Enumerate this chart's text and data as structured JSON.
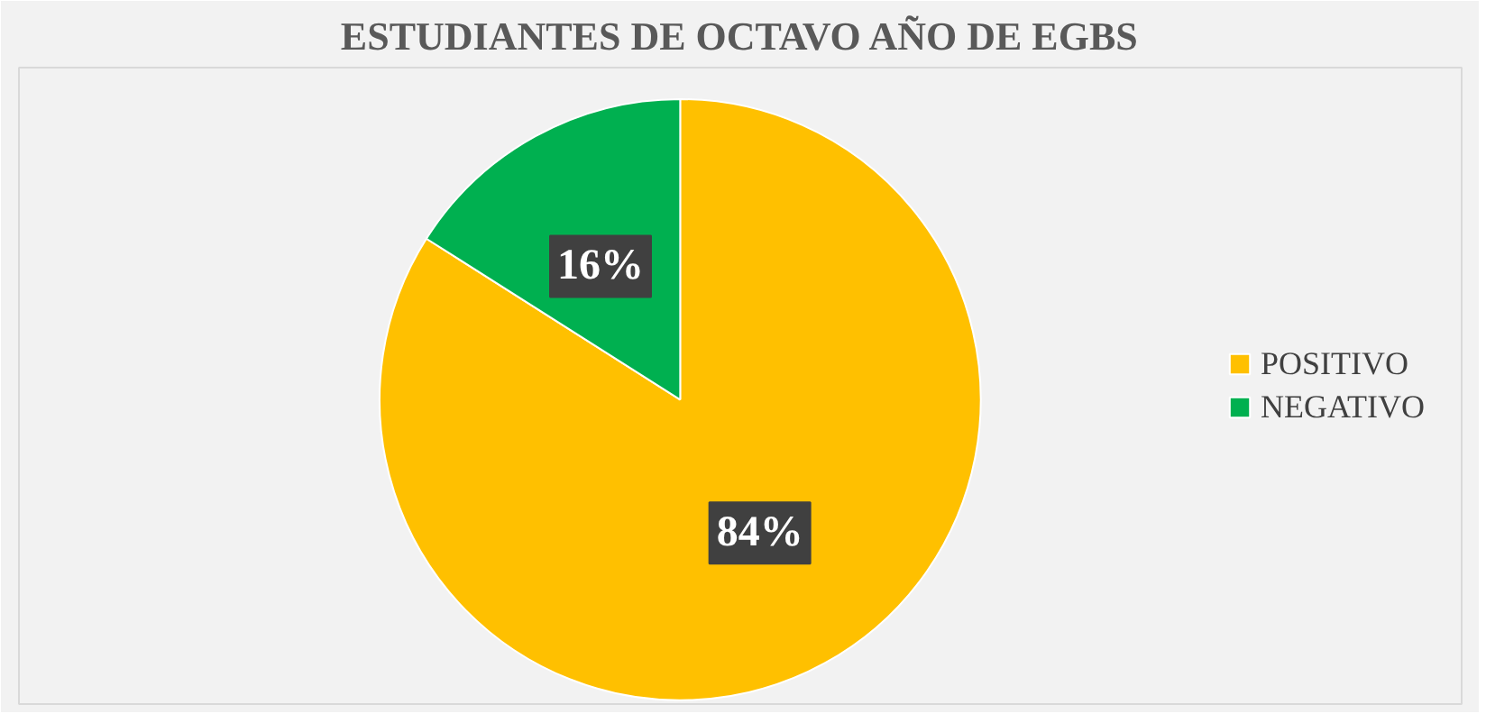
{
  "chart_data": {
    "type": "pie",
    "title": "ESTUDIANTES DE OCTAVO AÑO DE EGBS",
    "categories": [
      "POSITIVO",
      "NEGATIVO"
    ],
    "values": [
      84,
      16
    ],
    "colors": [
      "#ffc000",
      "#00b050"
    ],
    "value_labels": [
      "84%",
      "16%"
    ],
    "legend": "right"
  }
}
